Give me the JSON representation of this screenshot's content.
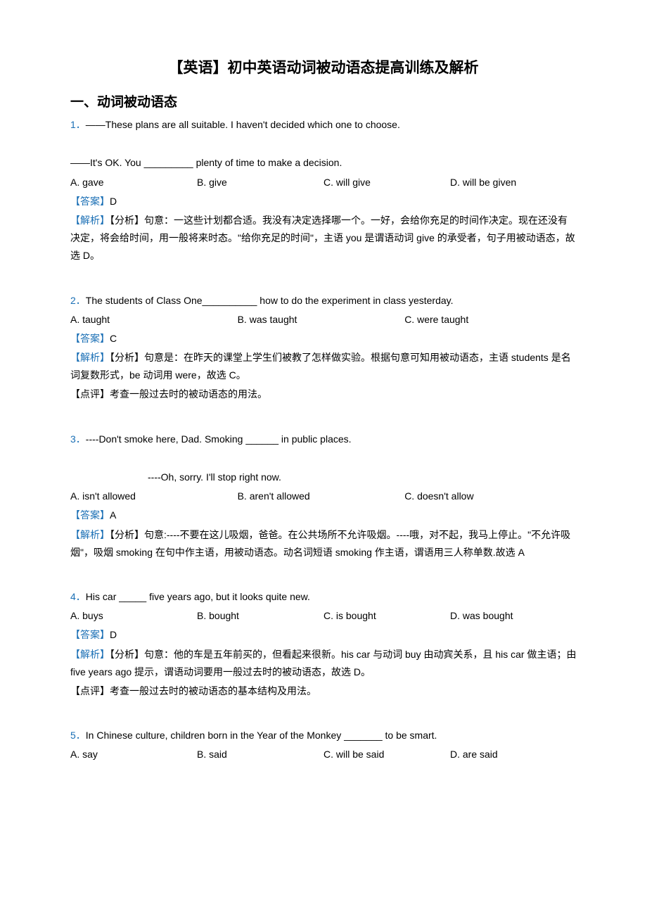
{
  "title": "【英语】初中英语动词被动语态提高训练及解析",
  "section_heading": "一、动词被动语态",
  "colors": {
    "accent": "#1a6fb5",
    "text": "#000000",
    "background": "#ffffff"
  },
  "typography": {
    "title_fontsize": 21,
    "heading_fontsize": 19,
    "body_fontsize": 14,
    "line_height": 1.8
  },
  "questions": [
    {
      "num": "1．",
      "stem_lines": [
        "——These plans are all suitable. I haven't decided which one to choose.",
        "",
        "——It's OK. You _________ plenty of time to make a decision."
      ],
      "options": [
        "A. gave",
        "B. give",
        "C. will give",
        "D. will be given"
      ],
      "option_layout": "four",
      "answer": "D",
      "analysis": "【分析】句意：一这些计划都合适。我没有决定选择哪一个。一好，会给你充足的时间作决定。现在还没有决定，将会给时间，用一般将来时态。\"给你充足的时间\"，主语 you 是谓语动词 give 的承受者，句子用被动语态，故选 D。",
      "comment": ""
    },
    {
      "num": "2．",
      "stem_lines": [
        "The students of Class One__________ how to do the experiment in class yesterday."
      ],
      "options": [
        "A. taught",
        "B. was taught",
        "C. were taught"
      ],
      "option_layout": "three",
      "answer": "C",
      "analysis": "【分析】句意是：在昨天的课堂上学生们被教了怎样做实验。根据句意可知用被动语态，主语 students 是名词复数形式，be 动词用 were，故选 C。",
      "comment": "【点评】考查一般过去时的被动语态的用法。"
    },
    {
      "num": "3．",
      "stem_lines": [
        "----Don't smoke here, Dad. Smoking ______ in public places.",
        "",
        "INDENT----Oh, sorry. I'll stop right now."
      ],
      "options": [
        "A. isn't allowed",
        "B. aren't allowed",
        "C. doesn't allow"
      ],
      "option_layout": "three",
      "answer": "A",
      "analysis": "【分析】句意:----不要在这儿吸烟，爸爸。在公共场所不允许吸烟。----哦，对不起，我马上停止。\"不允许吸烟\"，吸烟 smoking 在句中作主语，用被动语态。动名词短语 smoking 作主语，谓语用三人称单数.故选 A",
      "comment": ""
    },
    {
      "num": "4．",
      "stem_lines": [
        "His car _____ five years ago, but it looks quite new."
      ],
      "options": [
        "A. buys",
        "B. bought",
        "C. is bought",
        "D. was bought"
      ],
      "option_layout": "four",
      "answer": "D",
      "analysis": "【分析】句意：他的车是五年前买的，但看起来很新。his car 与动词 buy 由动宾关系，且 his car 做主语；由 five years ago 提示，谓语动词要用一般过去时的被动语态，故选 D。",
      "comment": "【点评】考查一般过去时的被动语态的基本结构及用法。"
    },
    {
      "num": "5．",
      "stem_lines": [
        "In Chinese culture, children born in the Year of the Monkey _______ to be smart."
      ],
      "options": [
        "A. say",
        "B. said",
        "C. will be said",
        "D. are said"
      ],
      "option_layout": "four",
      "answer": "",
      "analysis": "",
      "comment": ""
    }
  ],
  "labels": {
    "answer": "【答案】",
    "analysis": "【解析】"
  }
}
